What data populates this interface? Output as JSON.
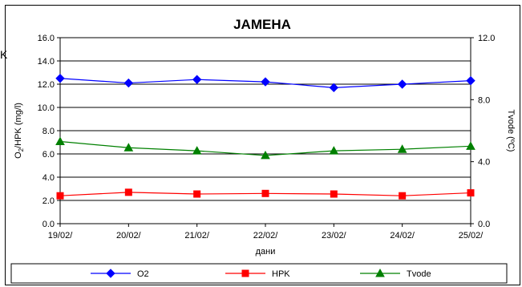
{
  "edge_fragment": "K",
  "chart_data": {
    "type": "line",
    "title": "JAMEHA",
    "xlabel": "дани",
    "ylabel_left": "O2/HPK (mg/l)",
    "ylabel_right": "Tvode (ºC)",
    "categories": [
      "19/02/",
      "20/02/",
      "21/02/",
      "22/02/",
      "23/02/",
      "24/02/",
      "25/02/"
    ],
    "ylim_left": [
      0,
      16
    ],
    "yticks_left": [
      "0.0",
      "2.0",
      "4.0",
      "6.0",
      "8.0",
      "10.0",
      "12.0",
      "14.0",
      "16.0"
    ],
    "ylim_right": [
      0,
      12
    ],
    "yticks_right": [
      "0.0",
      "4.0",
      "8.0",
      "12.0"
    ],
    "grid": "horizontal",
    "legend_position": "bottom",
    "series": [
      {
        "name": "O2",
        "axis": "left",
        "color": "#0000ff",
        "marker": "diamond",
        "values": [
          12.5,
          12.1,
          12.4,
          12.2,
          11.7,
          12.0,
          12.3
        ]
      },
      {
        "name": "HPK",
        "axis": "left",
        "color": "#ff0000",
        "marker": "square",
        "values": [
          2.4,
          2.7,
          2.55,
          2.6,
          2.55,
          2.4,
          2.65
        ]
      },
      {
        "name": "Tvode",
        "axis": "right",
        "color": "#008000",
        "marker": "triangle",
        "values": [
          5.3,
          4.9,
          4.7,
          4.4,
          4.7,
          4.8,
          5.0
        ]
      }
    ]
  }
}
